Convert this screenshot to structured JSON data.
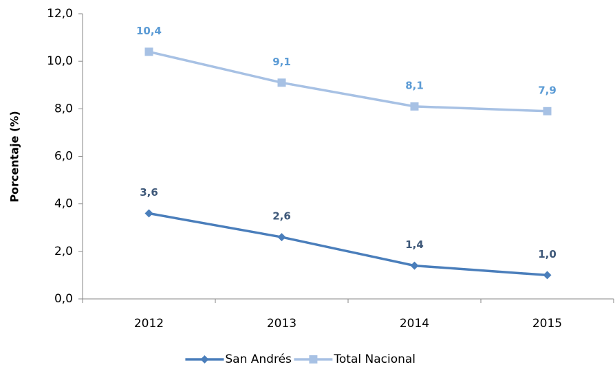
{
  "chart_data": {
    "type": "line",
    "y_label": "Porcentaje (%)",
    "categories": [
      "2012",
      "2013",
      "2014",
      "2015"
    ],
    "series": [
      {
        "name": "San Andrés",
        "color": "#4a7ebb",
        "label_color": "#3e5879",
        "marker": "diamond",
        "values": [
          3.6,
          2.6,
          1.4,
          1.0
        ],
        "value_labels": [
          "3,6",
          "2,6",
          "1,4",
          "1,0"
        ]
      },
      {
        "name": "Total Nacional",
        "color": "#a7c1e4",
        "label_color": "#5b9bd5",
        "marker": "square",
        "values": [
          10.4,
          9.1,
          8.1,
          7.9
        ],
        "value_labels": [
          "10,4",
          "9,1",
          "8,1",
          "7,9"
        ]
      }
    ],
    "ylim": [
      0,
      12
    ],
    "yticks": [
      {
        "value": 0,
        "label": "0,0"
      },
      {
        "value": 2,
        "label": "2,0"
      },
      {
        "value": 4,
        "label": "4,0"
      },
      {
        "value": 6,
        "label": "6,0"
      },
      {
        "value": 8,
        "label": "8,0"
      },
      {
        "value": 10,
        "label": "10,0"
      },
      {
        "value": 12,
        "label": "12,0"
      }
    ],
    "grid": false,
    "legend": "bottom"
  }
}
